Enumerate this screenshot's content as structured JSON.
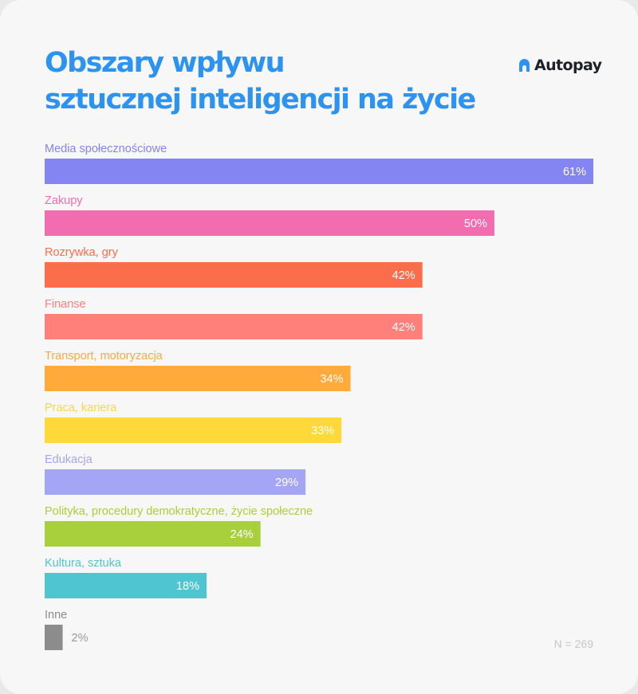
{
  "header": {
    "title_line1": "Obszary wpływu",
    "title_line2": "sztucznej inteligencji na życie"
  },
  "logo": {
    "text": "Autopay",
    "icon": "autopay-logo-icon",
    "icon_color": "#2d93f0"
  },
  "footnote": "N = 269",
  "chart_data": {
    "type": "bar",
    "orientation": "horizontal",
    "title": "Obszary wpływu sztucznej inteligencji na życie",
    "xlabel": "",
    "ylabel": "",
    "unit": "%",
    "xlim": [
      0,
      61
    ],
    "grid": false,
    "legend": "none",
    "categories": [
      "Media społecznościowe",
      "Zakupy",
      "Rozrywka, gry",
      "Finanse",
      "Transport, motoryzacja",
      "Praca, kariera",
      "Edukacja",
      "Polityka, procedury demokratyczne, życie społeczne",
      "Kultura, sztuka",
      "Inne"
    ],
    "values": [
      61,
      50,
      42,
      42,
      34,
      33,
      29,
      24,
      18,
      2
    ],
    "value_labels": [
      "61%",
      "50%",
      "42%",
      "42%",
      "34%",
      "33%",
      "29%",
      "24%",
      "18%",
      "2%"
    ],
    "colors": [
      "#8484f2",
      "#f26db0",
      "#fc6d4c",
      "#ff7f7b",
      "#ffaa3a",
      "#ffd83a",
      "#a5a5f5",
      "#a8cf3c",
      "#50c5d2",
      "#8c8c8c"
    ],
    "value_label_color_inside": "#ffffff",
    "value_label_color_outside": "#9a9a9a"
  }
}
